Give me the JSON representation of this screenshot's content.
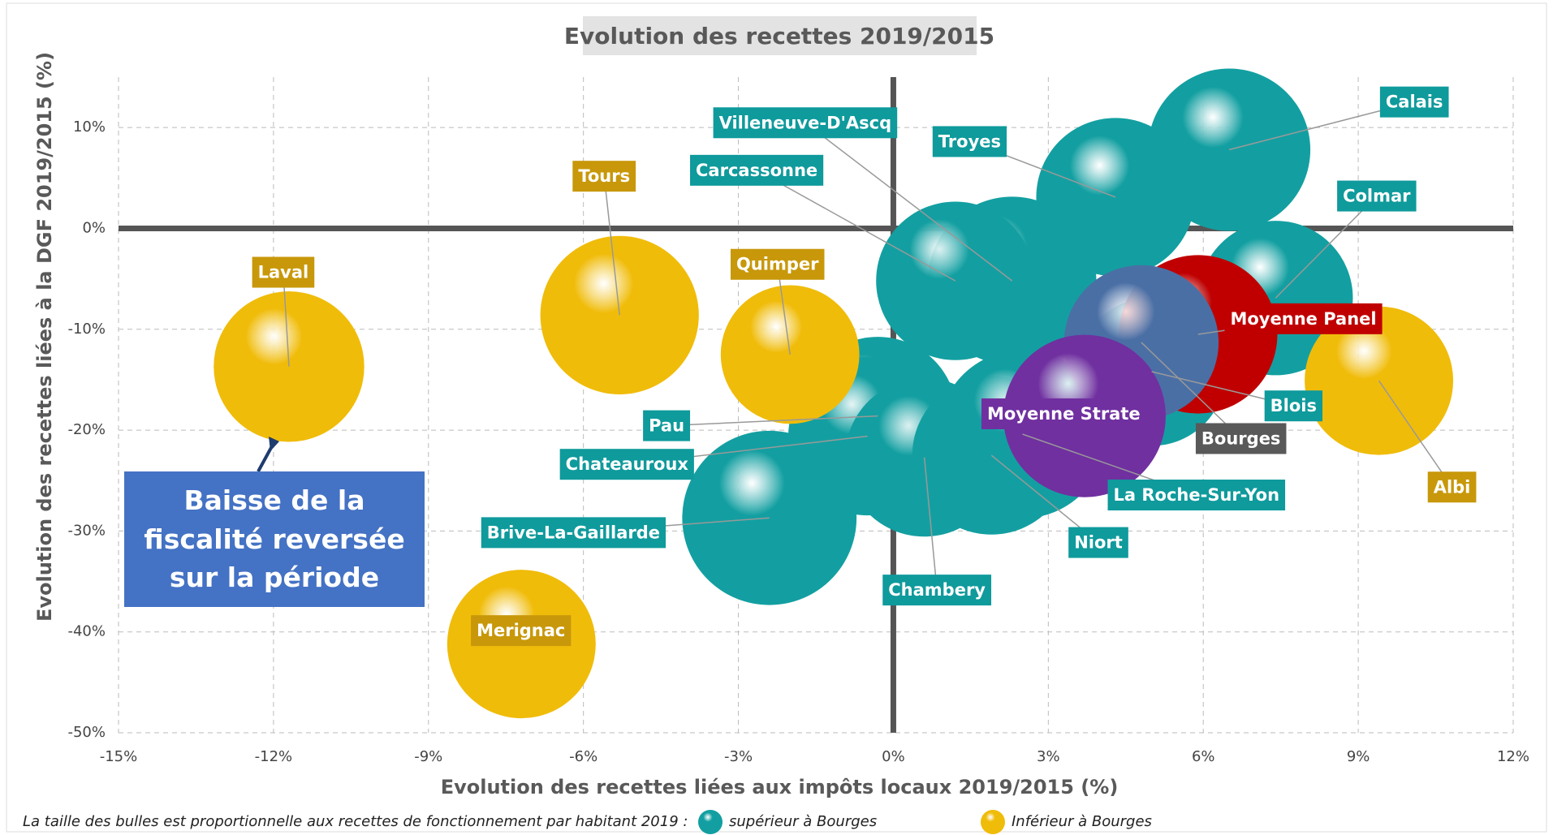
{
  "chart_data": {
    "type": "bubble",
    "title": "Evolution des recettes 2019/2015",
    "x_label": "Evolution des recettes liées aux impôts locaux 2019/2015 (%)",
    "y_label": "Evolution des recettes liées à la DGF 2019/2015 (%)",
    "xlim": [
      -15,
      12
    ],
    "ylim": [
      -50,
      15
    ],
    "xticks": [
      {
        "value": -15,
        "label": "-15%"
      },
      {
        "value": -12,
        "label": "-12%"
      },
      {
        "value": -9,
        "label": "-9%"
      },
      {
        "value": -6,
        "label": "-6%"
      },
      {
        "value": -3,
        "label": "-3%"
      },
      {
        "value": 0,
        "label": "0%"
      },
      {
        "value": 3,
        "label": "3%"
      },
      {
        "value": 6,
        "label": "6%"
      },
      {
        "value": 9,
        "label": "9%"
      },
      {
        "value": 12,
        "label": "12%"
      }
    ],
    "yticks": [
      {
        "value": -50,
        "label": "-50%"
      },
      {
        "value": -40,
        "label": "-40%"
      },
      {
        "value": -30,
        "label": "-30%"
      },
      {
        "value": -20,
        "label": "-20%"
      },
      {
        "value": -10,
        "label": "-10%"
      },
      {
        "value": 0,
        "label": "0%"
      },
      {
        "value": 10,
        "label": "10%"
      }
    ],
    "grid": true,
    "size_note": "La taille des bulles est proportionnelle aux recettes de fonctionnement par habitant 2019 :",
    "series": [
      {
        "name": "supérieur à Bourges",
        "color": "#139fa1",
        "labels": [
          "Villeneuve-D'Ascq",
          "Troyes",
          "Calais",
          "Colmar",
          "Carcassonne",
          "Pau",
          "Chateauroux",
          "Brive-La-Gaillarde",
          "Chambery",
          "Niort",
          "La Roche-Sur-Yon",
          "Blois"
        ],
        "x": [
          2.3,
          4.3,
          6.5,
          7.4,
          1.2,
          -0.3,
          -0.5,
          -2.4,
          0.6,
          1.9,
          2.5,
          5.0
        ],
        "y": [
          -5.2,
          3.1,
          7.8,
          -6.9,
          -5.2,
          -18.6,
          -20.6,
          -28.7,
          -22.7,
          -22.5,
          -20.4,
          -14.2
        ],
        "sizes": [
          85,
          80,
          82,
          78,
          80,
          80,
          80,
          88,
          80,
          80,
          85,
          75
        ]
      },
      {
        "name": "Inférieur à Bourges",
        "color": "#f0bc0a",
        "labels": [
          "Laval",
          "Tours",
          "Quimper",
          "Merignac",
          "Albi"
        ],
        "x": [
          -11.7,
          -5.3,
          -2.0,
          -7.2,
          9.4
        ],
        "y": [
          -13.7,
          -8.6,
          -12.5,
          -41.2,
          -15.1
        ],
        "sizes": [
          76,
          80,
          70,
          75,
          75
        ]
      }
    ],
    "highlights": {
      "labels": [
        "Moyenne Panel",
        "Bourges",
        "Moyenne Strate"
      ],
      "colors": [
        "#c00000",
        "#4a6fa5",
        "#7030a0"
      ],
      "x": [
        5.9,
        4.8,
        3.7
      ],
      "y": [
        -10.5,
        -11.3,
        -18.6
      ],
      "sizes": [
        80,
        78,
        82
      ]
    },
    "annotation": "Baisse de la fiscalité reversée sur la période"
  }
}
